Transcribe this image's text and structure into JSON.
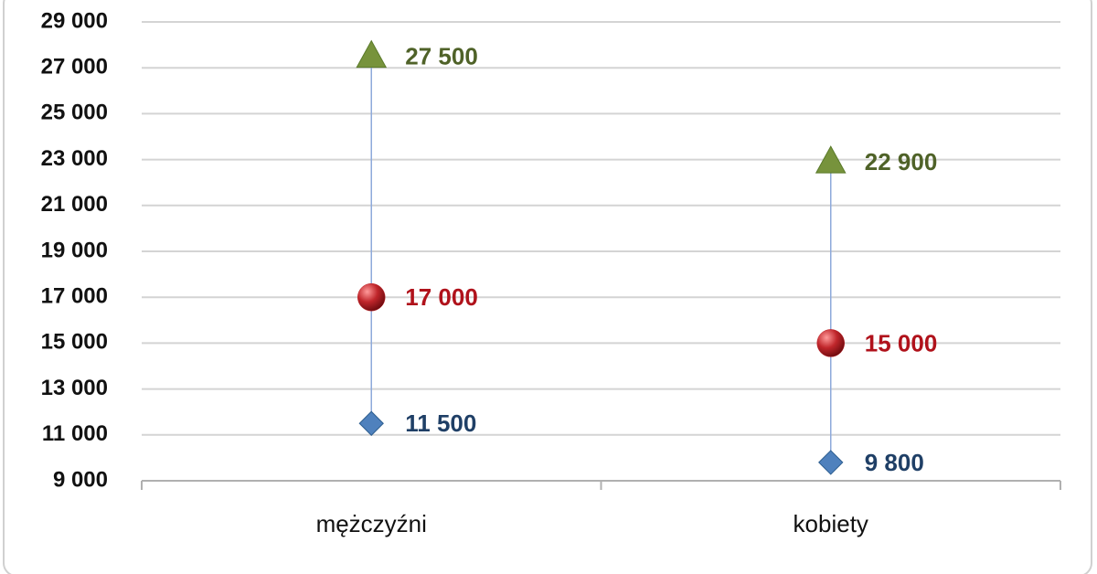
{
  "chart_data": {
    "type": "high-low",
    "categories": [
      "mężczyźni",
      "kobiety"
    ],
    "series": [
      {
        "marker": "triangle",
        "color": "#77933c",
        "label_color": "#4f6228",
        "values": [
          27500,
          22900
        ],
        "value_labels": [
          "27 500",
          "22 900"
        ]
      },
      {
        "marker": "circle",
        "color": "#c0262b",
        "label_color": "#b0121b",
        "values": [
          17000,
          15000
        ],
        "value_labels": [
          "17 000",
          "15 000"
        ]
      },
      {
        "marker": "diamond",
        "color": "#4f81bd",
        "label_color": "#1f3f66",
        "values": [
          11500,
          9800
        ],
        "value_labels": [
          "11 500",
          "9 800"
        ]
      }
    ],
    "ylim": [
      9000,
      29000
    ],
    "yticks": [
      {
        "value": 9000,
        "label": "9 000"
      },
      {
        "value": 11000,
        "label": "11 000"
      },
      {
        "value": 13000,
        "label": "13 000"
      },
      {
        "value": 15000,
        "label": "15 000"
      },
      {
        "value": 17000,
        "label": "17 000"
      },
      {
        "value": 19000,
        "label": "19 000"
      },
      {
        "value": 21000,
        "label": "21 000"
      },
      {
        "value": 23000,
        "label": "23 000"
      },
      {
        "value": 25000,
        "label": "25 000"
      },
      {
        "value": 27000,
        "label": "27 000"
      },
      {
        "value": 29000,
        "label": "29 000"
      }
    ],
    "grid": true,
    "high_low_lines": true
  }
}
